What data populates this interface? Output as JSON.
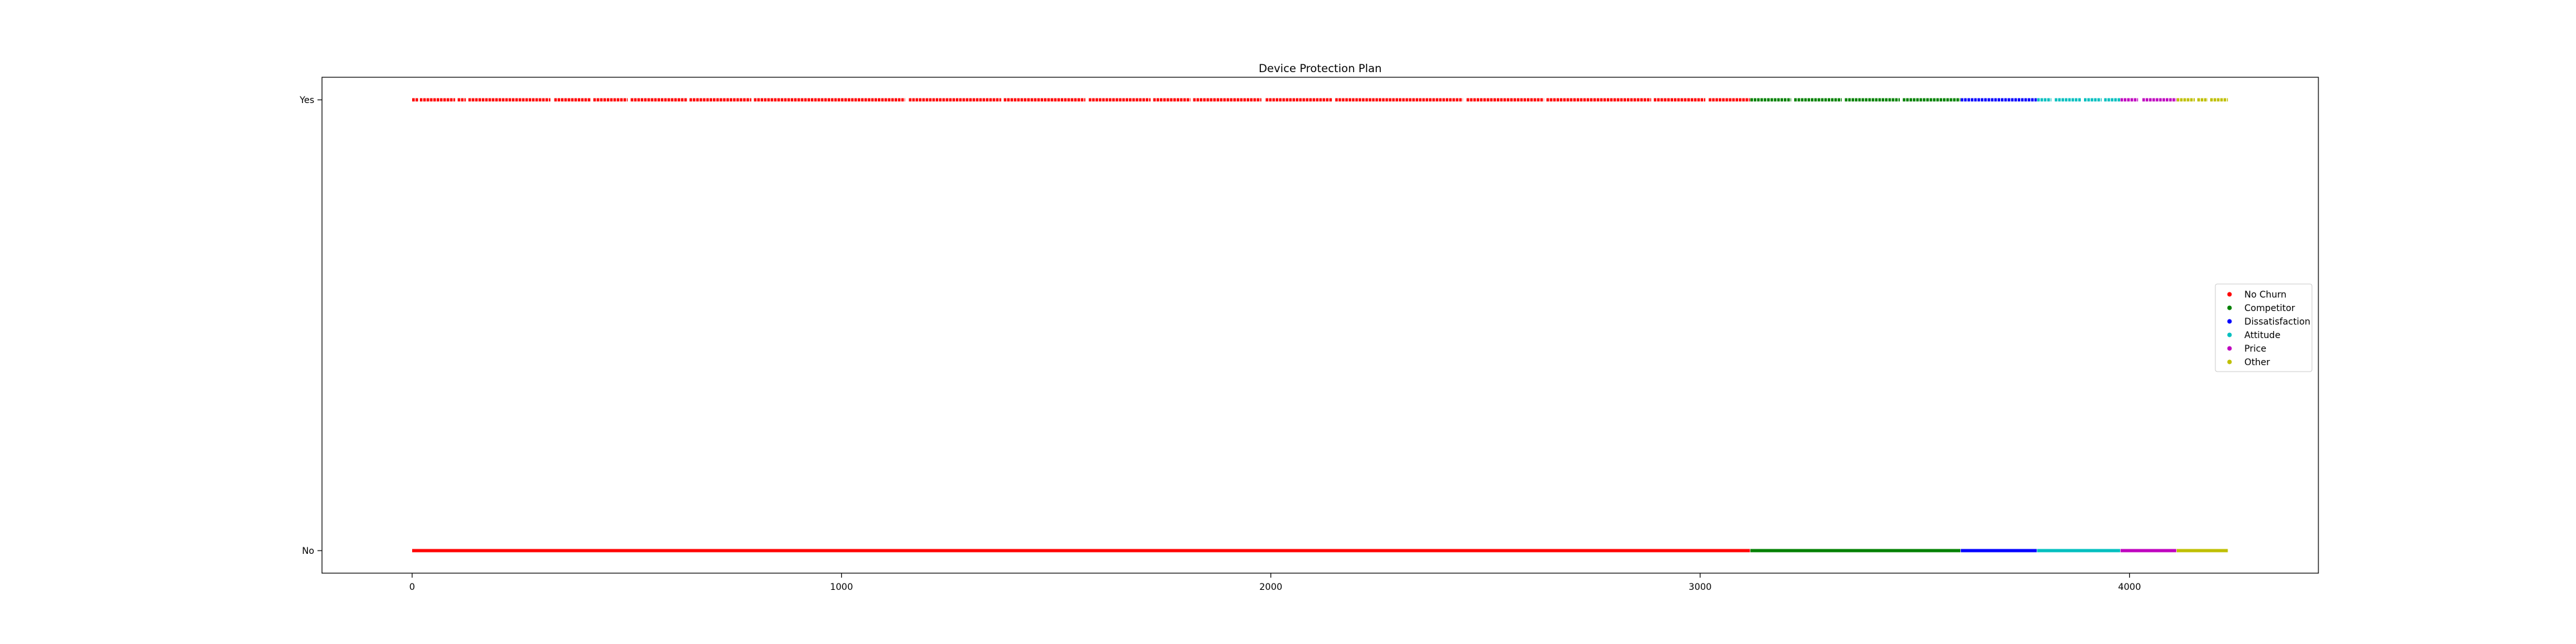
{
  "chart_data": {
    "type": "scatter",
    "title": "Device Protection Plan",
    "xlabel": "",
    "ylabel": "",
    "xlim": [
      -210,
      4440
    ],
    "ylim": [
      -0.05,
      1.05
    ],
    "x_ticks": [
      0,
      1000,
      2000,
      3000,
      4000
    ],
    "y_ticks": [
      {
        "value": 0,
        "label": "No"
      },
      {
        "value": 1,
        "label": "Yes"
      }
    ],
    "grid": false,
    "legend_position": "center-right",
    "series": [
      {
        "name": "No Churn",
        "color": "#ff0000",
        "x_range": [
          0,
          3116
        ],
        "yes_gaps": [
          [
            14,
            18
          ],
          [
            100,
            106
          ],
          [
            125,
            131
          ],
          [
            322,
            331
          ],
          [
            415,
            422
          ],
          [
            502,
            509
          ],
          [
            640,
            646
          ],
          [
            790,
            796
          ],
          [
            1148,
            1157
          ],
          [
            1372,
            1378
          ],
          [
            1568,
            1576
          ],
          [
            1720,
            1726
          ],
          [
            1813,
            1819
          ],
          [
            1978,
            1988
          ],
          [
            2143,
            2150
          ],
          [
            2447,
            2456
          ],
          [
            2636,
            2642
          ],
          [
            2886,
            2892
          ],
          [
            3012,
            3020
          ]
        ]
      },
      {
        "name": "Competitor",
        "color": "#008000",
        "x_range": [
          3117,
          3606
        ],
        "yes_gaps": [
          [
            3212,
            3219
          ],
          [
            3330,
            3337
          ],
          [
            3465,
            3472
          ]
        ]
      },
      {
        "name": "Dissatisfaction",
        "color": "#0000ff",
        "x_range": [
          3607,
          3784
        ],
        "yes_gaps": []
      },
      {
        "name": "Attitude",
        "color": "#00bfbf",
        "x_range": [
          3785,
          3978
        ],
        "yes_gaps": [
          [
            3818,
            3826
          ],
          [
            3888,
            3894
          ],
          [
            3935,
            3941
          ]
        ]
      },
      {
        "name": "Price",
        "color": "#bf00bf",
        "x_range": [
          3979,
          4109
        ],
        "yes_gaps": [
          [
            4020,
            4030
          ]
        ]
      },
      {
        "name": "Other",
        "color": "#bfbf00",
        "x_range": [
          4110,
          4229
        ],
        "yes_gaps": [
          [
            4152,
            4158
          ],
          [
            4182,
            4188
          ]
        ]
      }
    ]
  }
}
